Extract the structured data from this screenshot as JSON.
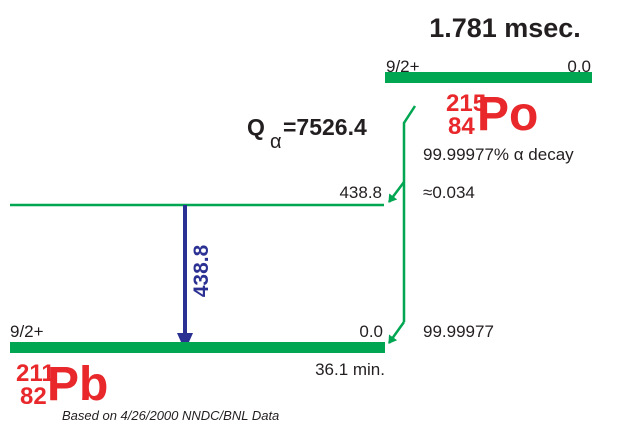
{
  "parent": {
    "half_life": "1.781 msec.",
    "spin": "9/2+",
    "energy": "0.0",
    "mass_number": "215",
    "atomic_number": "84",
    "symbol": "Po",
    "decay_mode": "99.99977% α decay"
  },
  "q_value": {
    "prefix": "Q",
    "subscript": "α",
    "value": "=7526.4"
  },
  "excited_level": {
    "energy": "438.8",
    "branching": "≈0.034"
  },
  "gamma": {
    "energy": "438.8"
  },
  "daughter": {
    "half_life": "36.1 min.",
    "spin": "9/2+",
    "energy": "0.0",
    "mass_number": "211",
    "atomic_number": "82",
    "symbol": "Pb",
    "branching": "99.99977"
  },
  "footnote": "Based on 4/26/2000 NNDC/BNL Data",
  "colors": {
    "level_line": "#00a651",
    "nuclide_label": "#e8282b",
    "gamma_arrow": "#2b3192",
    "text": "#231f20"
  }
}
